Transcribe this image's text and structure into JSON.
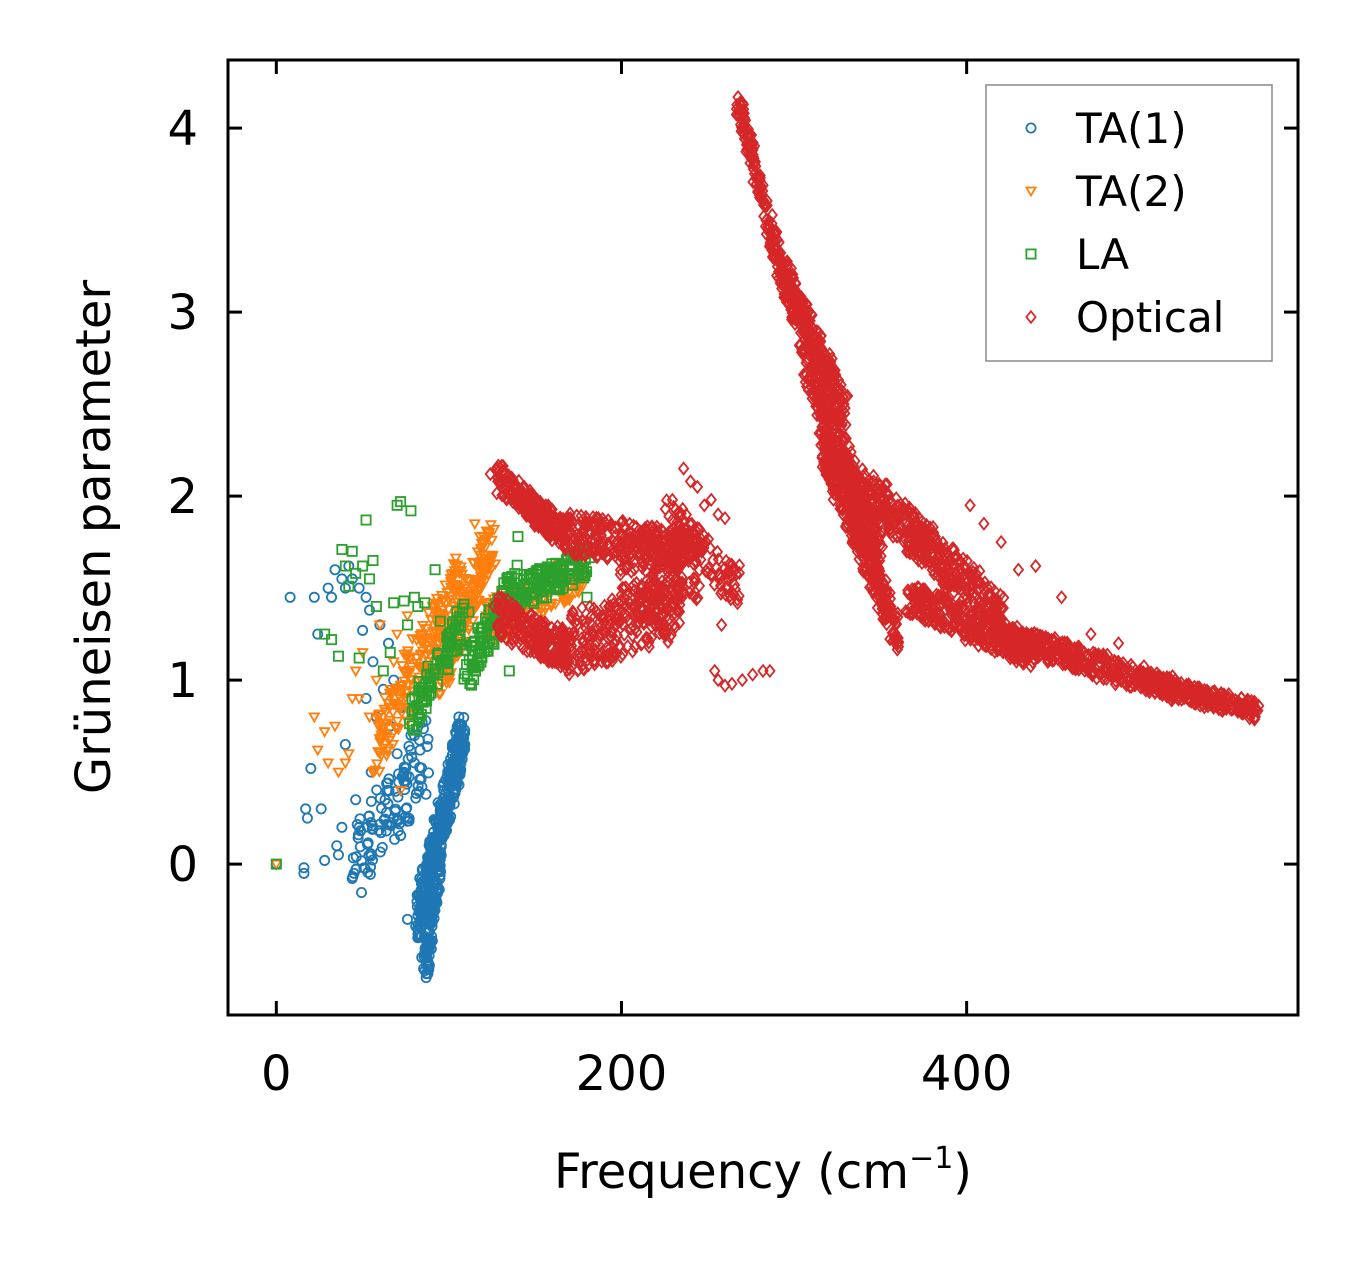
{
  "chart_data": {
    "type": "scatter",
    "title": "",
    "xlabel": "Frequency (cm",
    "xlabel_sup": "−1",
    "xlabel_close": ")",
    "ylabel": "Grüneisen parameter",
    "xlim": [
      -28,
      592
    ],
    "ylim": [
      -0.82,
      4.37
    ],
    "xticks": [
      0,
      200,
      400
    ],
    "xtick_labels": [
      "0",
      "200",
      "400"
    ],
    "yticks": [
      0,
      1,
      2,
      3,
      4
    ],
    "ytick_labels": [
      "0",
      "1",
      "2",
      "3",
      "4"
    ],
    "grid": false,
    "legend_position": "top-right",
    "series": [
      {
        "name": "TA(1)",
        "marker": "circle",
        "color": "#1f77b4",
        "points": [
          [
            0,
            0
          ],
          [
            8,
            1.45
          ],
          [
            16,
            -0.05
          ],
          [
            16,
            -0.02
          ],
          [
            17,
            0.3
          ],
          [
            18,
            0.25
          ],
          [
            20,
            0.52
          ],
          [
            22,
            1.45
          ],
          [
            24,
            1.25
          ],
          [
            26,
            0.3
          ],
          [
            28,
            0.02
          ],
          [
            30,
            1.5
          ],
          [
            32,
            1.45
          ],
          [
            34,
            1.6
          ],
          [
            35,
            0.1
          ],
          [
            36,
            0.05
          ],
          [
            38,
            1.55
          ],
          [
            38,
            0.2
          ],
          [
            40,
            1.5
          ],
          [
            40,
            0.65
          ],
          [
            42,
            1.62
          ],
          [
            44,
            1.55
          ],
          [
            45,
            -0.05
          ],
          [
            46,
            0.35
          ],
          [
            48,
            1.5
          ],
          [
            48,
            0.2
          ],
          [
            50,
            1.27
          ],
          [
            52,
            1.45
          ],
          [
            52,
            0.9
          ],
          [
            54,
            1.38
          ],
          [
            55,
            0.5
          ],
          [
            56,
            1.1
          ],
          [
            58,
            0.8
          ],
          [
            60,
            1.3
          ],
          [
            62,
            0.95
          ],
          [
            63,
            0.35
          ],
          [
            65,
            1.2
          ],
          [
            66,
            0.75
          ],
          [
            68,
            1.0
          ],
          [
            70,
            0.6
          ],
          [
            72,
            0.85
          ],
          [
            74,
            0.45
          ],
          [
            76,
            -0.3
          ],
          [
            78,
            0.7
          ],
          [
            80,
            0.55
          ],
          [
            82,
            -0.4
          ]
        ],
        "bands": [
          {
            "from": [
              45,
              0.0
            ],
            "to": [
              88,
              0.6
            ],
            "count": 110,
            "spread": 0.22
          },
          {
            "from": [
              82,
              -0.3
            ],
            "to": [
              108,
              0.7
            ],
            "count": 420,
            "spread": 0.13
          },
          {
            "from": [
              86,
              -0.6
            ],
            "to": [
              97,
              0.3
            ],
            "count": 160,
            "spread": 0.08
          }
        ]
      },
      {
        "name": "TA(2)",
        "marker": "triangle-down",
        "color": "#ff7f0e",
        "points": [
          [
            0,
            0
          ],
          [
            22,
            0.8
          ],
          [
            24,
            0.62
          ],
          [
            28,
            0.72
          ],
          [
            30,
            0.55
          ],
          [
            34,
            0.75
          ],
          [
            36,
            0.5
          ],
          [
            40,
            0.55
          ],
          [
            42,
            0.6
          ],
          [
            44,
            0.9
          ],
          [
            46,
            1.05
          ],
          [
            48,
            0.9
          ],
          [
            50,
            1.15
          ],
          [
            54,
            0.8
          ],
          [
            56,
            0.5
          ],
          [
            58,
            1.0
          ],
          [
            60,
            1.3
          ],
          [
            62,
            0.75
          ],
          [
            66,
            0.95
          ],
          [
            68,
            1.1
          ],
          [
            70,
            1.25
          ],
          [
            72,
            0.4
          ],
          [
            74,
            1.05
          ],
          [
            76,
            1.35
          ],
          [
            115,
            1.85
          ],
          [
            118,
            1.78
          ]
        ],
        "bands": [
          {
            "from": [
              58,
              0.65
            ],
            "to": [
              108,
              1.55
            ],
            "count": 220,
            "spread": 0.18
          },
          {
            "from": [
              95,
              1.0
            ],
            "to": [
              125,
              1.75
            ],
            "count": 200,
            "spread": 0.13
          },
          {
            "from": [
              120,
              1.3
            ],
            "to": [
              178,
              1.6
            ],
            "count": 130,
            "spread": 0.12
          }
        ]
      },
      {
        "name": "LA",
        "marker": "square",
        "color": "#2ca02c",
        "points": [
          [
            0,
            0
          ],
          [
            28,
            1.25
          ],
          [
            32,
            1.22
          ],
          [
            36,
            1.13
          ],
          [
            38,
            1.71
          ],
          [
            40,
            1.62
          ],
          [
            42,
            1.51
          ],
          [
            44,
            1.7
          ],
          [
            46,
            1.58
          ],
          [
            48,
            1.12
          ],
          [
            50,
            1.62
          ],
          [
            52,
            1.87
          ],
          [
            54,
            1.55
          ],
          [
            56,
            1.65
          ],
          [
            58,
            1.4
          ],
          [
            62,
            1.05
          ],
          [
            66,
            1.15
          ],
          [
            68,
            1.42
          ],
          [
            70,
            1.95
          ],
          [
            72,
            1.97
          ],
          [
            74,
            1.43
          ],
          [
            76,
            1.3
          ],
          [
            78,
            1.92
          ],
          [
            80,
            1.45
          ],
          [
            82,
            1.4
          ],
          [
            86,
            1.42
          ],
          [
            92,
            1.6
          ],
          [
            95,
            1.32
          ],
          [
            100,
            1.25
          ],
          [
            135,
            1.05
          ],
          [
            140,
            1.78
          ],
          [
            180,
            1.45
          ]
        ],
        "bands": [
          {
            "from": [
              78,
              0.8
            ],
            "to": [
              110,
              1.35
            ],
            "count": 100,
            "spread": 0.1
          },
          {
            "from": [
              110,
              1.05
            ],
            "to": [
              140,
              1.55
            ],
            "count": 110,
            "spread": 0.12
          },
          {
            "from": [
              138,
              1.45
            ],
            "to": [
              180,
              1.65
            ],
            "count": 130,
            "spread": 0.09
          }
        ]
      },
      {
        "name": "Optical",
        "marker": "diamond",
        "color": "#d62728",
        "points": [
          [
            124,
            2.12
          ],
          [
            128,
            2.15
          ],
          [
            132,
            2.08
          ],
          [
            236,
            2.15
          ],
          [
            240,
            2.08
          ],
          [
            244,
            2.05
          ],
          [
            248,
            1.95
          ],
          [
            252,
            1.98
          ],
          [
            256,
            1.9
          ],
          [
            260,
            1.88
          ],
          [
            264,
            1.6
          ],
          [
            258,
            1.3
          ],
          [
            254,
            1.05
          ],
          [
            256,
            1.0
          ],
          [
            260,
            0.97
          ],
          [
            264,
            0.98
          ],
          [
            270,
            1.0
          ],
          [
            276,
            1.03
          ],
          [
            282,
            1.05
          ],
          [
            286,
            1.05
          ],
          [
            212,
            1.2
          ],
          [
            216,
            1.18
          ],
          [
            402,
            1.95
          ],
          [
            410,
            1.85
          ],
          [
            420,
            1.75
          ],
          [
            430,
            1.6
          ],
          [
            440,
            1.62
          ],
          [
            455,
            1.45
          ],
          [
            472,
            1.25
          ],
          [
            488,
            1.2
          ]
        ],
        "bands": [
          {
            "from": [
              128,
              2.1
            ],
            "to": [
              168,
              1.78
            ],
            "count": 240,
            "spread": 0.08
          },
          {
            "from": [
              168,
              1.8
            ],
            "to": [
              238,
              1.7
            ],
            "count": 260,
            "spread": 0.11
          },
          {
            "from": [
              128,
              1.35
            ],
            "to": [
              170,
              1.15
            ],
            "count": 230,
            "spread": 0.11
          },
          {
            "from": [
              170,
              1.2
            ],
            "to": [
              235,
              1.4
            ],
            "count": 240,
            "spread": 0.17
          },
          {
            "from": [
              200,
              1.55
            ],
            "to": [
              245,
              1.6
            ],
            "count": 170,
            "spread": 0.22
          },
          {
            "from": [
              225,
              1.9
            ],
            "to": [
              268,
              1.5
            ],
            "count": 110,
            "spread": 0.12
          },
          {
            "from": [
              268,
              4.12
            ],
            "to": [
              300,
              2.95
            ],
            "count": 200,
            "spread": 0.06
          },
          {
            "from": [
              295,
              3.2
            ],
            "to": [
              330,
              2.45
            ],
            "count": 230,
            "spread": 0.09
          },
          {
            "from": [
              305,
              2.8
            ],
            "to": [
              350,
              1.65
            ],
            "count": 400,
            "spread": 0.14
          },
          {
            "from": [
              315,
              2.3
            ],
            "to": [
              360,
              1.25
            ],
            "count": 300,
            "spread": 0.1
          },
          {
            "from": [
              340,
              2.05
            ],
            "to": [
              420,
              1.35
            ],
            "count": 420,
            "spread": 0.12
          },
          {
            "from": [
              365,
              1.45
            ],
            "to": [
              440,
              1.15
            ],
            "count": 330,
            "spread": 0.09
          },
          {
            "from": [
              420,
              1.25
            ],
            "to": [
              520,
              0.95
            ],
            "count": 360,
            "spread": 0.07
          },
          {
            "from": [
              500,
              1.0
            ],
            "to": [
              568,
              0.83
            ],
            "count": 260,
            "spread": 0.05
          }
        ]
      }
    ]
  }
}
